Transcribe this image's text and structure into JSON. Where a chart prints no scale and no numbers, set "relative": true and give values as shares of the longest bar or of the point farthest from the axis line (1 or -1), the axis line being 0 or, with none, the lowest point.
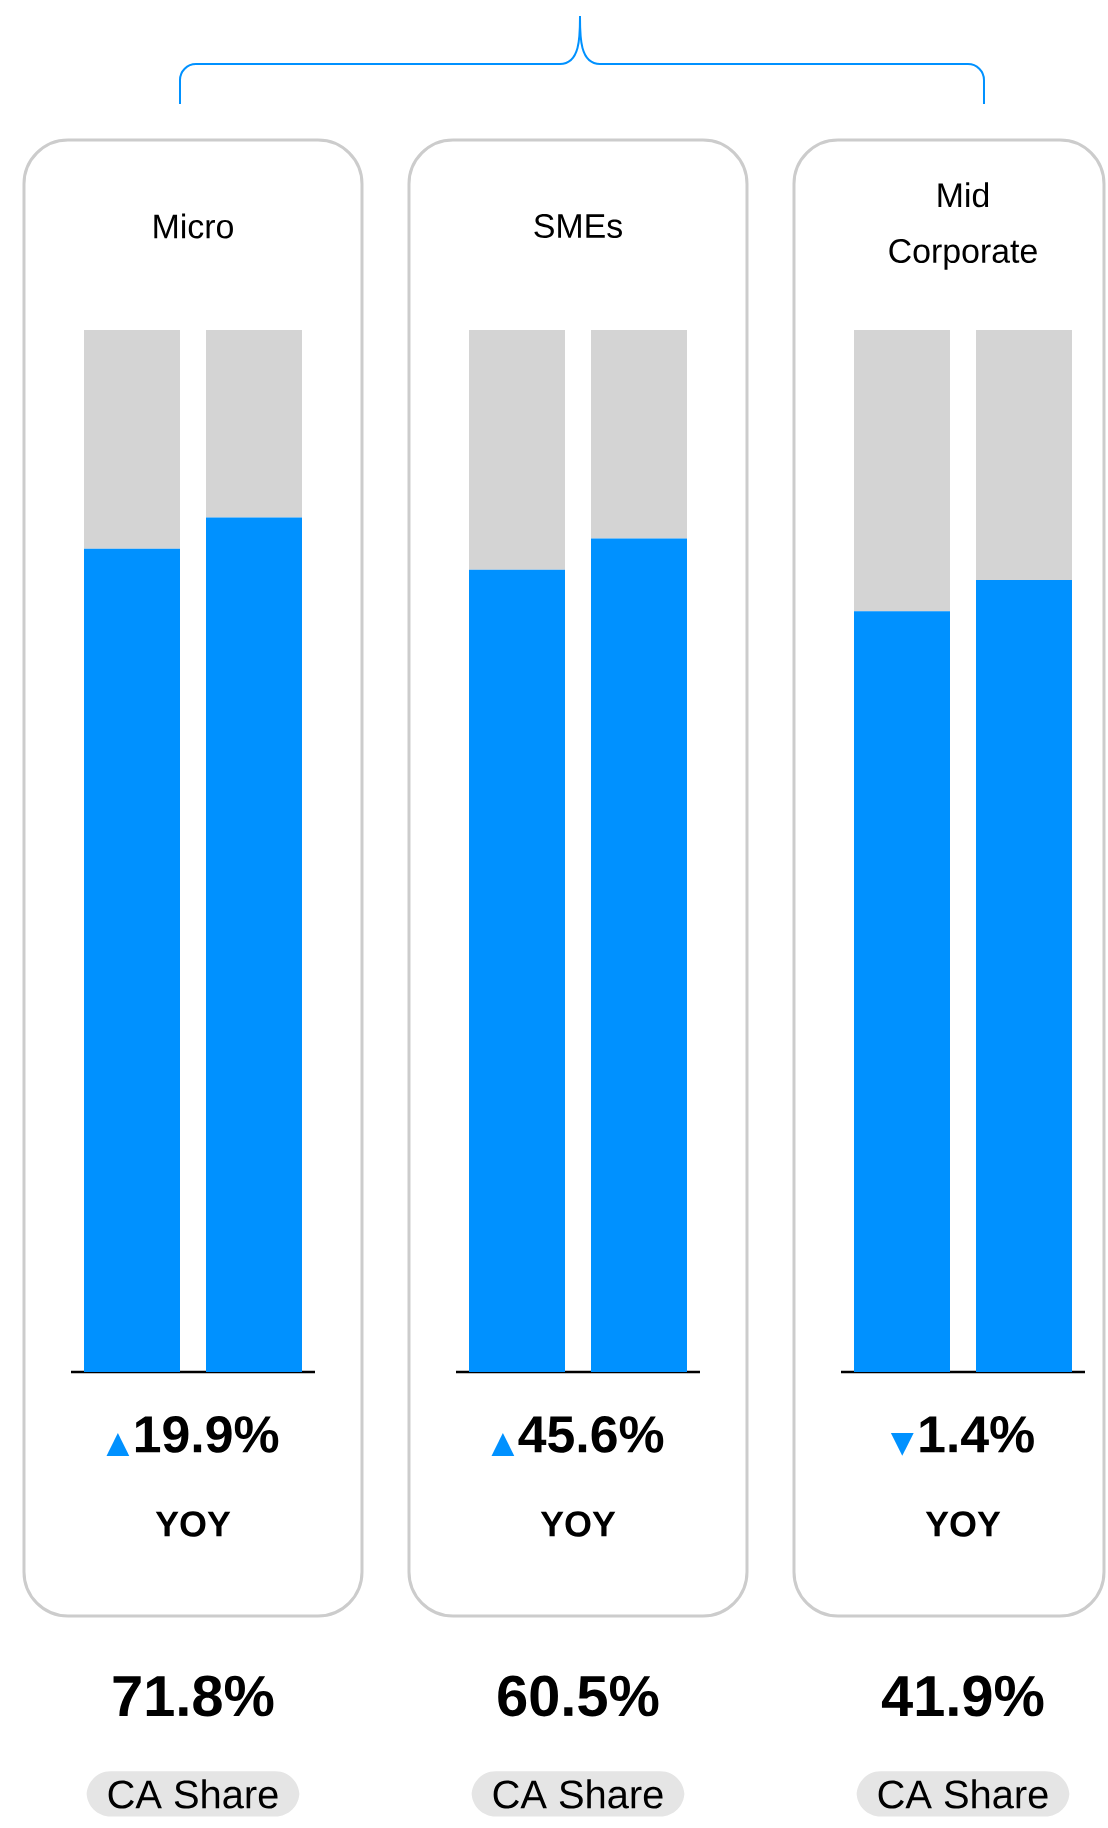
{
  "chart_data": [
    {
      "type": "bar",
      "title": "Micro",
      "categories": [
        null,
        null
      ],
      "stacked": true,
      "relative": true,
      "series": [
        {
          "color": "#0091ff",
          "values": [
            0.79,
            0.82
          ]
        },
        {
          "color": "#d4d4d4",
          "values": [
            0.21,
            0.18
          ]
        }
      ],
      "annotations": [
        "▲",
        "19.9%",
        "YOY",
        "71.8%",
        "CA Share"
      ]
    },
    {
      "type": "bar",
      "title": "SMEs",
      "categories": [
        null,
        null
      ],
      "stacked": true,
      "relative": true,
      "series": [
        {
          "color": "#0091ff",
          "values": [
            0.77,
            0.8
          ]
        },
        {
          "color": "#d4d4d4",
          "values": [
            0.23,
            0.2
          ]
        }
      ],
      "annotations": [
        "▲",
        "45.6%",
        "YOY",
        "60.5%",
        "CA Share"
      ]
    },
    {
      "type": "bar",
      "title": "Mid Corporate",
      "categories": [
        null,
        null
      ],
      "stacked": true,
      "relative": true,
      "series": [
        {
          "color": "#0091ff",
          "values": [
            0.73,
            0.76
          ]
        },
        {
          "color": "#d4d4d4",
          "values": [
            0.27,
            0.24
          ]
        }
      ],
      "annotations": [
        "▼",
        "1.4%",
        "YOY",
        "41.9%",
        "CA Share"
      ]
    }
  ]
}
